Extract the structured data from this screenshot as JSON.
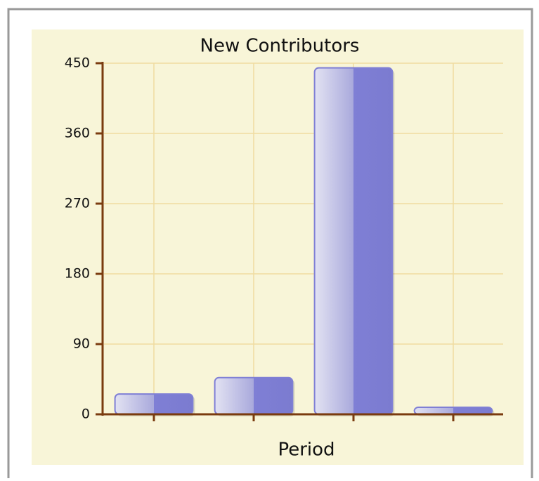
{
  "chart_data": {
    "type": "bar",
    "title": "New Contributors",
    "x_label": "Period",
    "categories": [
      null,
      null,
      null,
      null
    ],
    "values": [
      26,
      47,
      444,
      9
    ],
    "color": "#7f7fd5",
    "ylim": [
      0,
      450
    ],
    "yticks": [
      0,
      90,
      180,
      270,
      360,
      450
    ],
    "grid": true
  }
}
